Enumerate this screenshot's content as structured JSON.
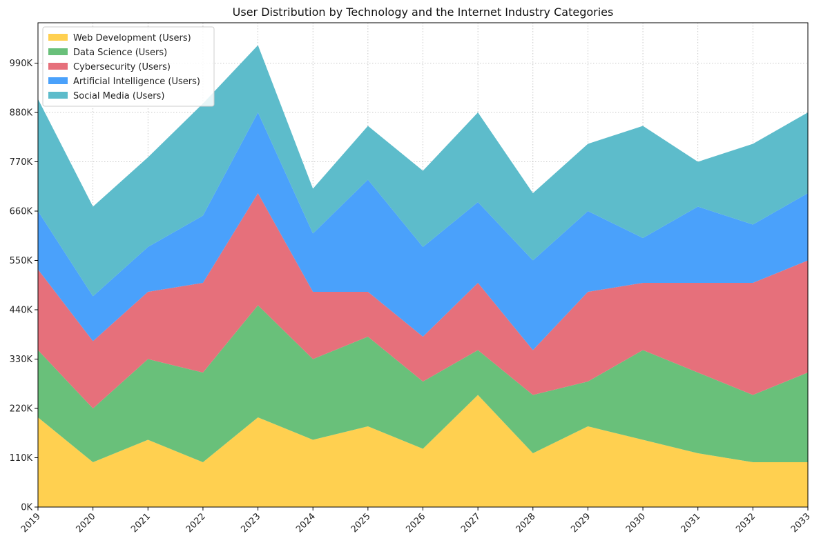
{
  "chart_data": {
    "type": "area",
    "stacked": true,
    "title": "User Distribution by Technology and the Internet Industry Categories",
    "xlabel": "",
    "ylabel": "",
    "x": [
      "2019",
      "2020",
      "2021",
      "2022",
      "2023",
      "2024",
      "2025",
      "2026",
      "2027",
      "2028",
      "2029",
      "2030",
      "2031",
      "2032",
      "2033"
    ],
    "ylim": [
      0,
      1080000
    ],
    "y_ticks": [
      0,
      110000,
      220000,
      330000,
      440000,
      550000,
      660000,
      770000,
      880000,
      990000
    ],
    "y_tick_labels": [
      "0K",
      "110K",
      "220K",
      "330K",
      "440K",
      "550K",
      "660K",
      "770K",
      "880K",
      "990K"
    ],
    "grid": true,
    "legend_position": "top-left",
    "series": [
      {
        "name": "Web Development (Users)",
        "color": "#ffd050",
        "values": [
          200000,
          100000,
          150000,
          100000,
          200000,
          150000,
          180000,
          130000,
          250000,
          120000,
          180000,
          150000,
          120000,
          100000,
          100000
        ]
      },
      {
        "name": "Data Science (Users)",
        "color": "#69c07a",
        "values": [
          150000,
          120000,
          180000,
          200000,
          250000,
          180000,
          200000,
          150000,
          100000,
          130000,
          100000,
          200000,
          180000,
          150000,
          200000
        ]
      },
      {
        "name": "Cybersecurity (Users)",
        "color": "#e6707b",
        "values": [
          180000,
          150000,
          150000,
          200000,
          250000,
          150000,
          100000,
          100000,
          150000,
          100000,
          200000,
          150000,
          200000,
          250000,
          250000
        ]
      },
      {
        "name": "Artificial Intelligence (Users)",
        "color": "#4aa1fb",
        "values": [
          130000,
          100000,
          100000,
          150000,
          180000,
          130000,
          250000,
          200000,
          180000,
          200000,
          180000,
          100000,
          170000,
          130000,
          150000
        ]
      },
      {
        "name": "Social Media (Users)",
        "color": "#5dbccb",
        "values": [
          250000,
          200000,
          200000,
          250000,
          150000,
          100000,
          120000,
          170000,
          200000,
          150000,
          150000,
          250000,
          100000,
          180000,
          180000
        ]
      }
    ]
  }
}
